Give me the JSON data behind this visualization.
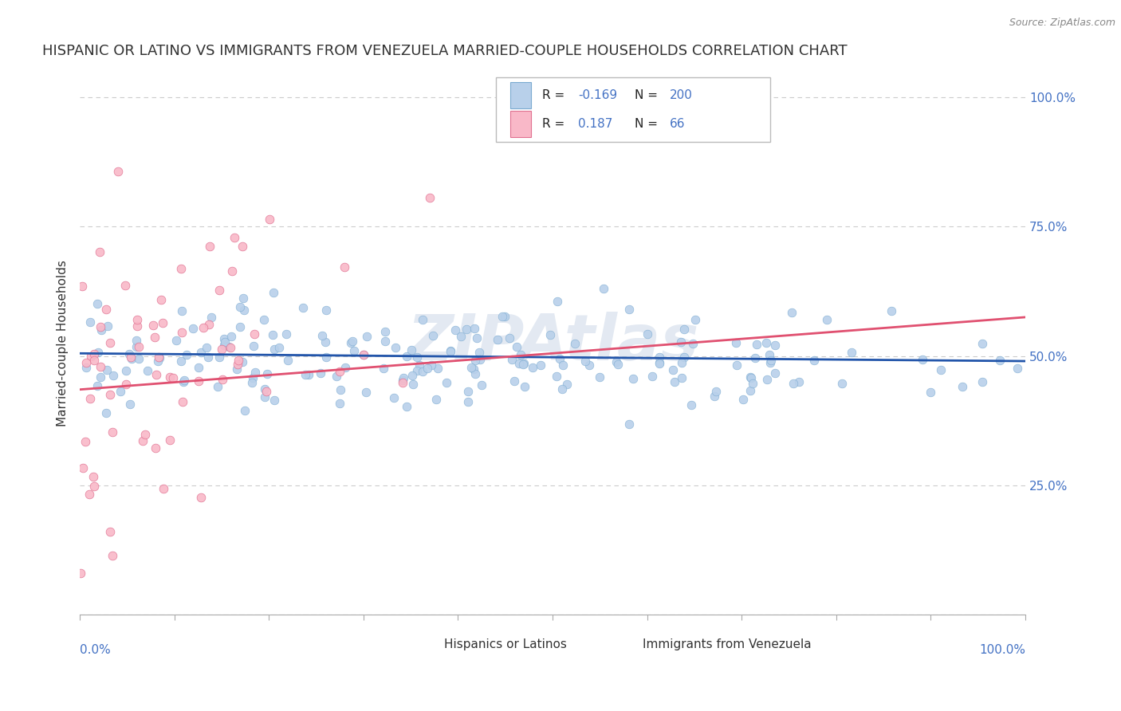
{
  "title": "HISPANIC OR LATINO VS IMMIGRANTS FROM VENEZUELA MARRIED-COUPLE HOUSEHOLDS CORRELATION CHART",
  "source": "Source: ZipAtlas.com",
  "ylabel": "Married-couple Households",
  "legend_label1": "Hispanics or Latinos",
  "legend_label2": "Immigrants from Venezuela",
  "series1": {
    "color": "#b8d0ea",
    "edge_color": "#7aaad0",
    "R": -0.169,
    "N": 200,
    "line_color": "#2255aa",
    "trend_y_start": 0.505,
    "trend_y_end": 0.49
  },
  "series2": {
    "color": "#f9b8c8",
    "edge_color": "#e07090",
    "R": 0.187,
    "N": 66,
    "line_color": "#e05070",
    "trend_x_start": 0.0,
    "trend_x_end": 1.0,
    "trend_y_start": 0.435,
    "trend_y_end": 0.575
  },
  "watermark": "ZIPAtlas",
  "ylim": [
    0.0,
    1.05
  ],
  "xlim": [
    0.0,
    1.0
  ],
  "ytick_positions": [
    0.0,
    0.25,
    0.5,
    0.75,
    1.0
  ],
  "ytick_labels": [
    "",
    "25.0%",
    "50.0%",
    "75.0%",
    "100.0%"
  ],
  "dashed_line_y": 0.75,
  "title_fontsize": 13,
  "value_color": "#4472c4",
  "label_color": "#333333",
  "background_color": "#ffffff",
  "grid_color": "#cccccc",
  "axis_color": "#4472c4"
}
